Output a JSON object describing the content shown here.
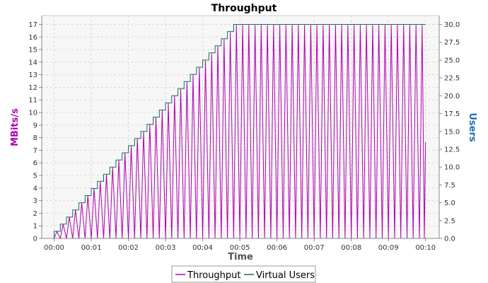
{
  "chart_data": {
    "type": "line",
    "title": "Throughput",
    "xlabel": "Time",
    "ylabel_left": "MBits/s",
    "ylabel_right": "Users",
    "x_unit": "seconds since start (mm:ss tick labels)",
    "x_ticks": [
      0,
      60,
      120,
      180,
      240,
      300,
      360,
      420,
      480,
      540,
      600
    ],
    "x_tick_labels": [
      "00:00",
      "00:01",
      "00:02",
      "00:03",
      "00:04",
      "00:05",
      "00:06",
      "00:07",
      "00:08",
      "00:09",
      "00:10"
    ],
    "xlim": [
      -20,
      622
    ],
    "ylim_left": [
      0,
      17.7
    ],
    "y_ticks_left": [
      0,
      1,
      2,
      3,
      4,
      5,
      6,
      7,
      8,
      9,
      10,
      11,
      12,
      13,
      14,
      15,
      16,
      17
    ],
    "ylim_right": [
      0,
      31.24
    ],
    "y_ticks_right": [
      0,
      2.5,
      5,
      7.5,
      10,
      12.5,
      15,
      17.5,
      20,
      22.5,
      25,
      27.5,
      30
    ],
    "y_tick_labels_right": [
      "0.0",
      "2.5",
      "5.0",
      "7.5",
      "10.0",
      "12.5",
      "15.0",
      "17.5",
      "20.0",
      "22.5",
      "25.0",
      "27.5",
      "30.0"
    ],
    "grid": true,
    "legend_position": "bottom",
    "series": [
      {
        "name": "Throughput",
        "axis": "left",
        "color": "#b000b0",
        "x_start": 0,
        "x_end": 600,
        "ramp_up_end_x": 290,
        "peaks_during_ramp": [
          0.56,
          1.13,
          1.69,
          2.26,
          2.82,
          3.39,
          3.95,
          4.52,
          5.08,
          5.65,
          6.21,
          6.78,
          7.34,
          7.91,
          8.47,
          9.04,
          9.6,
          10.17,
          10.73,
          11.3,
          11.86,
          12.43,
          12.99,
          13.56,
          14.12,
          14.69,
          15.25,
          15.82,
          16.38,
          16.95
        ],
        "plateau_peak": 16.95,
        "final_value": 7.65
      },
      {
        "name": "Virtual Users",
        "axis": "right",
        "color": "#1a6b5a",
        "step_interval": 10,
        "step_size": 1,
        "start_x": 0,
        "max_users": 30,
        "plateau_start_x": 290,
        "end_x": 600
      }
    ]
  }
}
